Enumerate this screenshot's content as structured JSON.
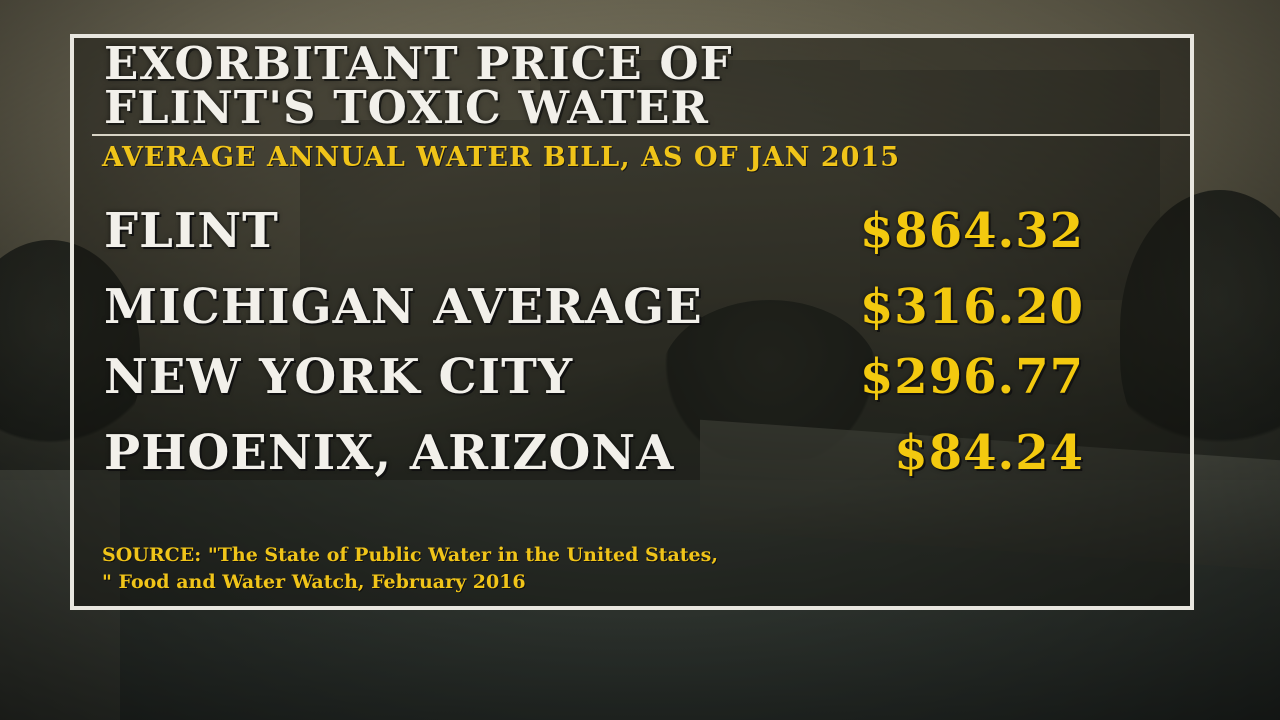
{
  "graphic": {
    "title_line1": "EXORBITANT PRICE OF",
    "title_line2": "FLINT'S TOXIC WATER",
    "subtitle": "AVERAGE ANNUAL WATER BILL, AS OF JAN 2015",
    "rows": [
      {
        "label": "FLINT",
        "value": "$864.32"
      },
      {
        "label": "MICHIGAN AVERAGE",
        "value": "$316.20"
      },
      {
        "label": "NEW YORK CITY",
        "value": "$296.77"
      },
      {
        "label": "PHOENIX, ARIZONA",
        "value": "$84.24"
      }
    ],
    "source_line1": "SOURCE: \"The State of Public Water in the United States,",
    "source_line2": "\" Food and Water Watch, February 2016"
  },
  "colors": {
    "accent": "#f3c90f",
    "text": "#f2f0ea",
    "frame": "#e8e6df"
  }
}
